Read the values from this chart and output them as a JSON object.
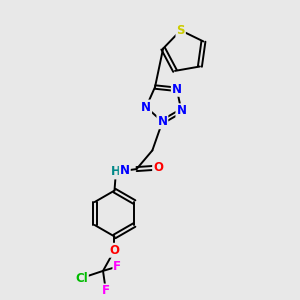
{
  "bg_color": "#e8e8e8",
  "bond_color": "#000000",
  "atom_colors": {
    "S": "#cccc00",
    "N": "#0000ff",
    "O": "#ff0000",
    "F": "#ff00ff",
    "Cl": "#00bb00",
    "C": "#000000",
    "H": "#008888"
  },
  "font_size": 8.5,
  "fig_size": [
    3.0,
    3.0
  ],
  "dpi": 100,
  "bond_lw": 1.4,
  "xlim": [
    0,
    10
  ],
  "ylim": [
    0,
    10
  ]
}
